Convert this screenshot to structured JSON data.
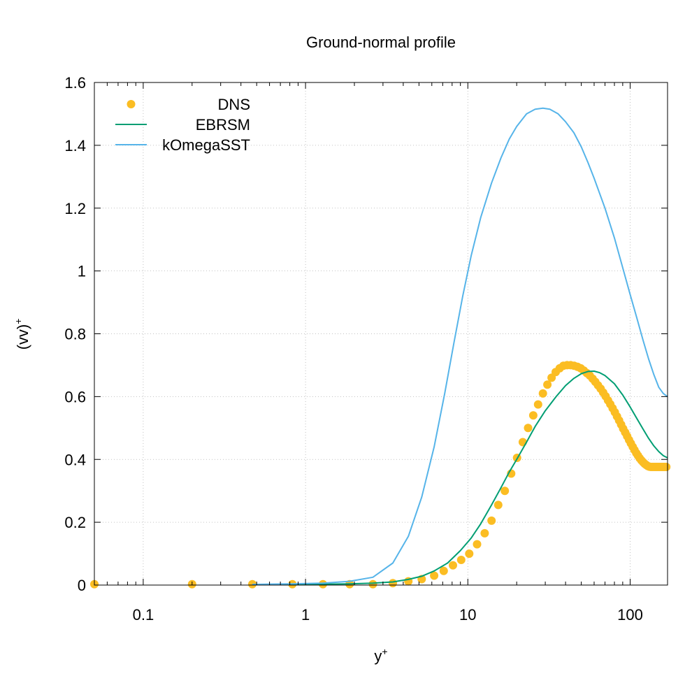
{
  "chart_data": {
    "type": "line",
    "title": "Ground-normal profile",
    "xlabel_base": "y",
    "xlabel_sup": "+",
    "ylabel_base": "(vv)",
    "ylabel_sup": "+",
    "xscale": "log",
    "xlim": [
      0.05,
      170
    ],
    "ylim": [
      0,
      1.6
    ],
    "x_ticks": [
      0.1,
      1,
      10,
      100
    ],
    "x_tick_labels": [
      "0.1",
      "1",
      "10",
      "100"
    ],
    "y_ticks": [
      0,
      0.2,
      0.4,
      0.6,
      0.8,
      1.0,
      1.2,
      1.4,
      1.6
    ],
    "y_tick_labels": [
      "0",
      "0.2",
      "0.4",
      "0.6",
      "0.8",
      "1",
      "1.2",
      "1.4",
      "1.6"
    ],
    "grid": true,
    "legend_position": "top-left",
    "series": [
      {
        "name": "DNS",
        "style": "points",
        "color": "#fbbd23",
        "x": [
          0.05,
          0.2,
          0.47,
          0.83,
          1.28,
          1.87,
          2.6,
          3.45,
          4.3,
          5.2,
          6.2,
          7.1,
          8.1,
          9.1,
          10.2,
          11.4,
          12.7,
          14.0,
          15.4,
          16.9,
          18.5,
          20.1,
          21.8,
          23.5,
          25.3,
          27.1,
          29.0,
          30.9,
          32.8,
          34.8,
          36.8,
          38.8,
          40.9,
          43.0,
          45.2,
          47.4,
          49.6,
          51.8,
          54.1,
          56.4,
          58.7,
          61.0,
          63.4,
          65.8,
          68.2,
          70.6,
          73.0,
          75.5,
          78.0,
          80.5,
          83.0,
          85.5,
          88.0,
          90.6,
          93.2,
          95.8,
          98.4,
          101.0,
          103.7,
          106.4,
          109.1,
          111.8,
          114.5,
          117.3,
          120.1,
          122.9,
          125.7,
          128.5,
          131.4,
          134.3,
          137.2,
          140.1,
          143.0,
          146.0,
          149.0,
          152.0,
          155.0,
          158.0,
          161.0,
          164.0,
          167.0
        ],
        "y": [
          0.003,
          0.003,
          0.003,
          0.003,
          0.003,
          0.003,
          0.003,
          0.006,
          0.012,
          0.019,
          0.03,
          0.045,
          0.063,
          0.08,
          0.1,
          0.13,
          0.165,
          0.205,
          0.255,
          0.3,
          0.355,
          0.405,
          0.455,
          0.5,
          0.54,
          0.575,
          0.61,
          0.638,
          0.66,
          0.678,
          0.69,
          0.698,
          0.7,
          0.7,
          0.698,
          0.695,
          0.69,
          0.683,
          0.675,
          0.667,
          0.657,
          0.647,
          0.636,
          0.625,
          0.613,
          0.601,
          0.588,
          0.576,
          0.563,
          0.55,
          0.537,
          0.524,
          0.511,
          0.498,
          0.486,
          0.474,
          0.462,
          0.451,
          0.44,
          0.43,
          0.42,
          0.412,
          0.404,
          0.397,
          0.391,
          0.386,
          0.382,
          0.379,
          0.377,
          0.376,
          0.376,
          0.376,
          0.376,
          0.376,
          0.376,
          0.376,
          0.376,
          0.376,
          0.376,
          0.376,
          0.376
        ]
      },
      {
        "name": "EBRSM",
        "style": "line",
        "color": "#009e73",
        "x": [
          0.47,
          0.83,
          1.28,
          1.87,
          2.6,
          3.45,
          4.3,
          5.2,
          6.2,
          7.5,
          9,
          10.5,
          12,
          14,
          16,
          18,
          20,
          23,
          26,
          30,
          35,
          40,
          45,
          50,
          55,
          60,
          65,
          70,
          80,
          90,
          100,
          110,
          120,
          130,
          140,
          150,
          160,
          170
        ],
        "y": [
          0.002,
          0.002,
          0.003,
          0.004,
          0.006,
          0.01,
          0.018,
          0.028,
          0.045,
          0.07,
          0.11,
          0.15,
          0.195,
          0.255,
          0.31,
          0.36,
          0.4,
          0.455,
          0.505,
          0.555,
          0.6,
          0.635,
          0.658,
          0.673,
          0.68,
          0.681,
          0.676,
          0.667,
          0.641,
          0.605,
          0.567,
          0.53,
          0.497,
          0.467,
          0.443,
          0.425,
          0.412,
          0.405
        ]
      },
      {
        "name": "kOmegaSST",
        "style": "line",
        "color": "#56b4e9",
        "x": [
          0.47,
          0.83,
          1.28,
          1.87,
          2.6,
          3.45,
          4.3,
          5.2,
          6.2,
          7.2,
          8.2,
          9.3,
          10.5,
          12,
          14,
          16,
          18,
          20,
          23,
          26,
          29,
          32,
          36,
          40,
          45,
          50,
          55,
          60,
          70,
          80,
          90,
          100,
          110,
          120,
          130,
          140,
          150,
          160,
          170
        ],
        "y": [
          0.002,
          0.004,
          0.006,
          0.012,
          0.025,
          0.07,
          0.155,
          0.28,
          0.44,
          0.61,
          0.77,
          0.92,
          1.05,
          1.17,
          1.28,
          1.36,
          1.42,
          1.46,
          1.5,
          1.515,
          1.518,
          1.515,
          1.5,
          1.475,
          1.44,
          1.395,
          1.345,
          1.295,
          1.2,
          1.105,
          1.01,
          0.925,
          0.85,
          0.78,
          0.72,
          0.67,
          0.63,
          0.61,
          0.6
        ]
      }
    ]
  }
}
